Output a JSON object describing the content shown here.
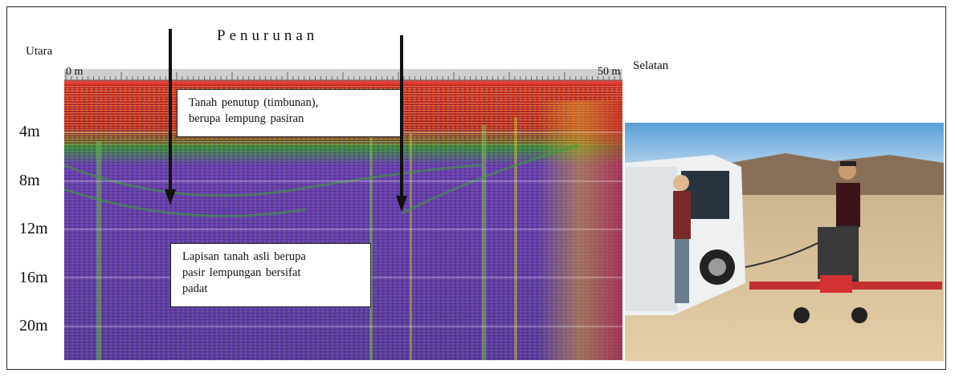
{
  "figure": {
    "title": "Penurunan",
    "left_direction": "Utara",
    "right_direction": "Selatan",
    "distance_start": "0 m",
    "distance_end": "50 m",
    "depth_labels": [
      "4m",
      "8m",
      "12m",
      "16m",
      "20m"
    ],
    "annotation_top_line1": "Tanah penutup (timbunan),",
    "annotation_top_line2": "berupa lempung pasiran",
    "annotation_bottom_line1": "Lapisan tanah asli berupa",
    "annotation_bottom_line2": "pasir lempungan bersifat",
    "annotation_bottom_line3": "padat"
  },
  "colors": {
    "surface_layer": "#d8241c",
    "deep_layer": "#6a3fae",
    "transition": "#2f9a3a",
    "ruler": "#cfcfcf"
  },
  "icons": [
    "down-arrow-icon",
    "down-arrow-icon"
  ]
}
